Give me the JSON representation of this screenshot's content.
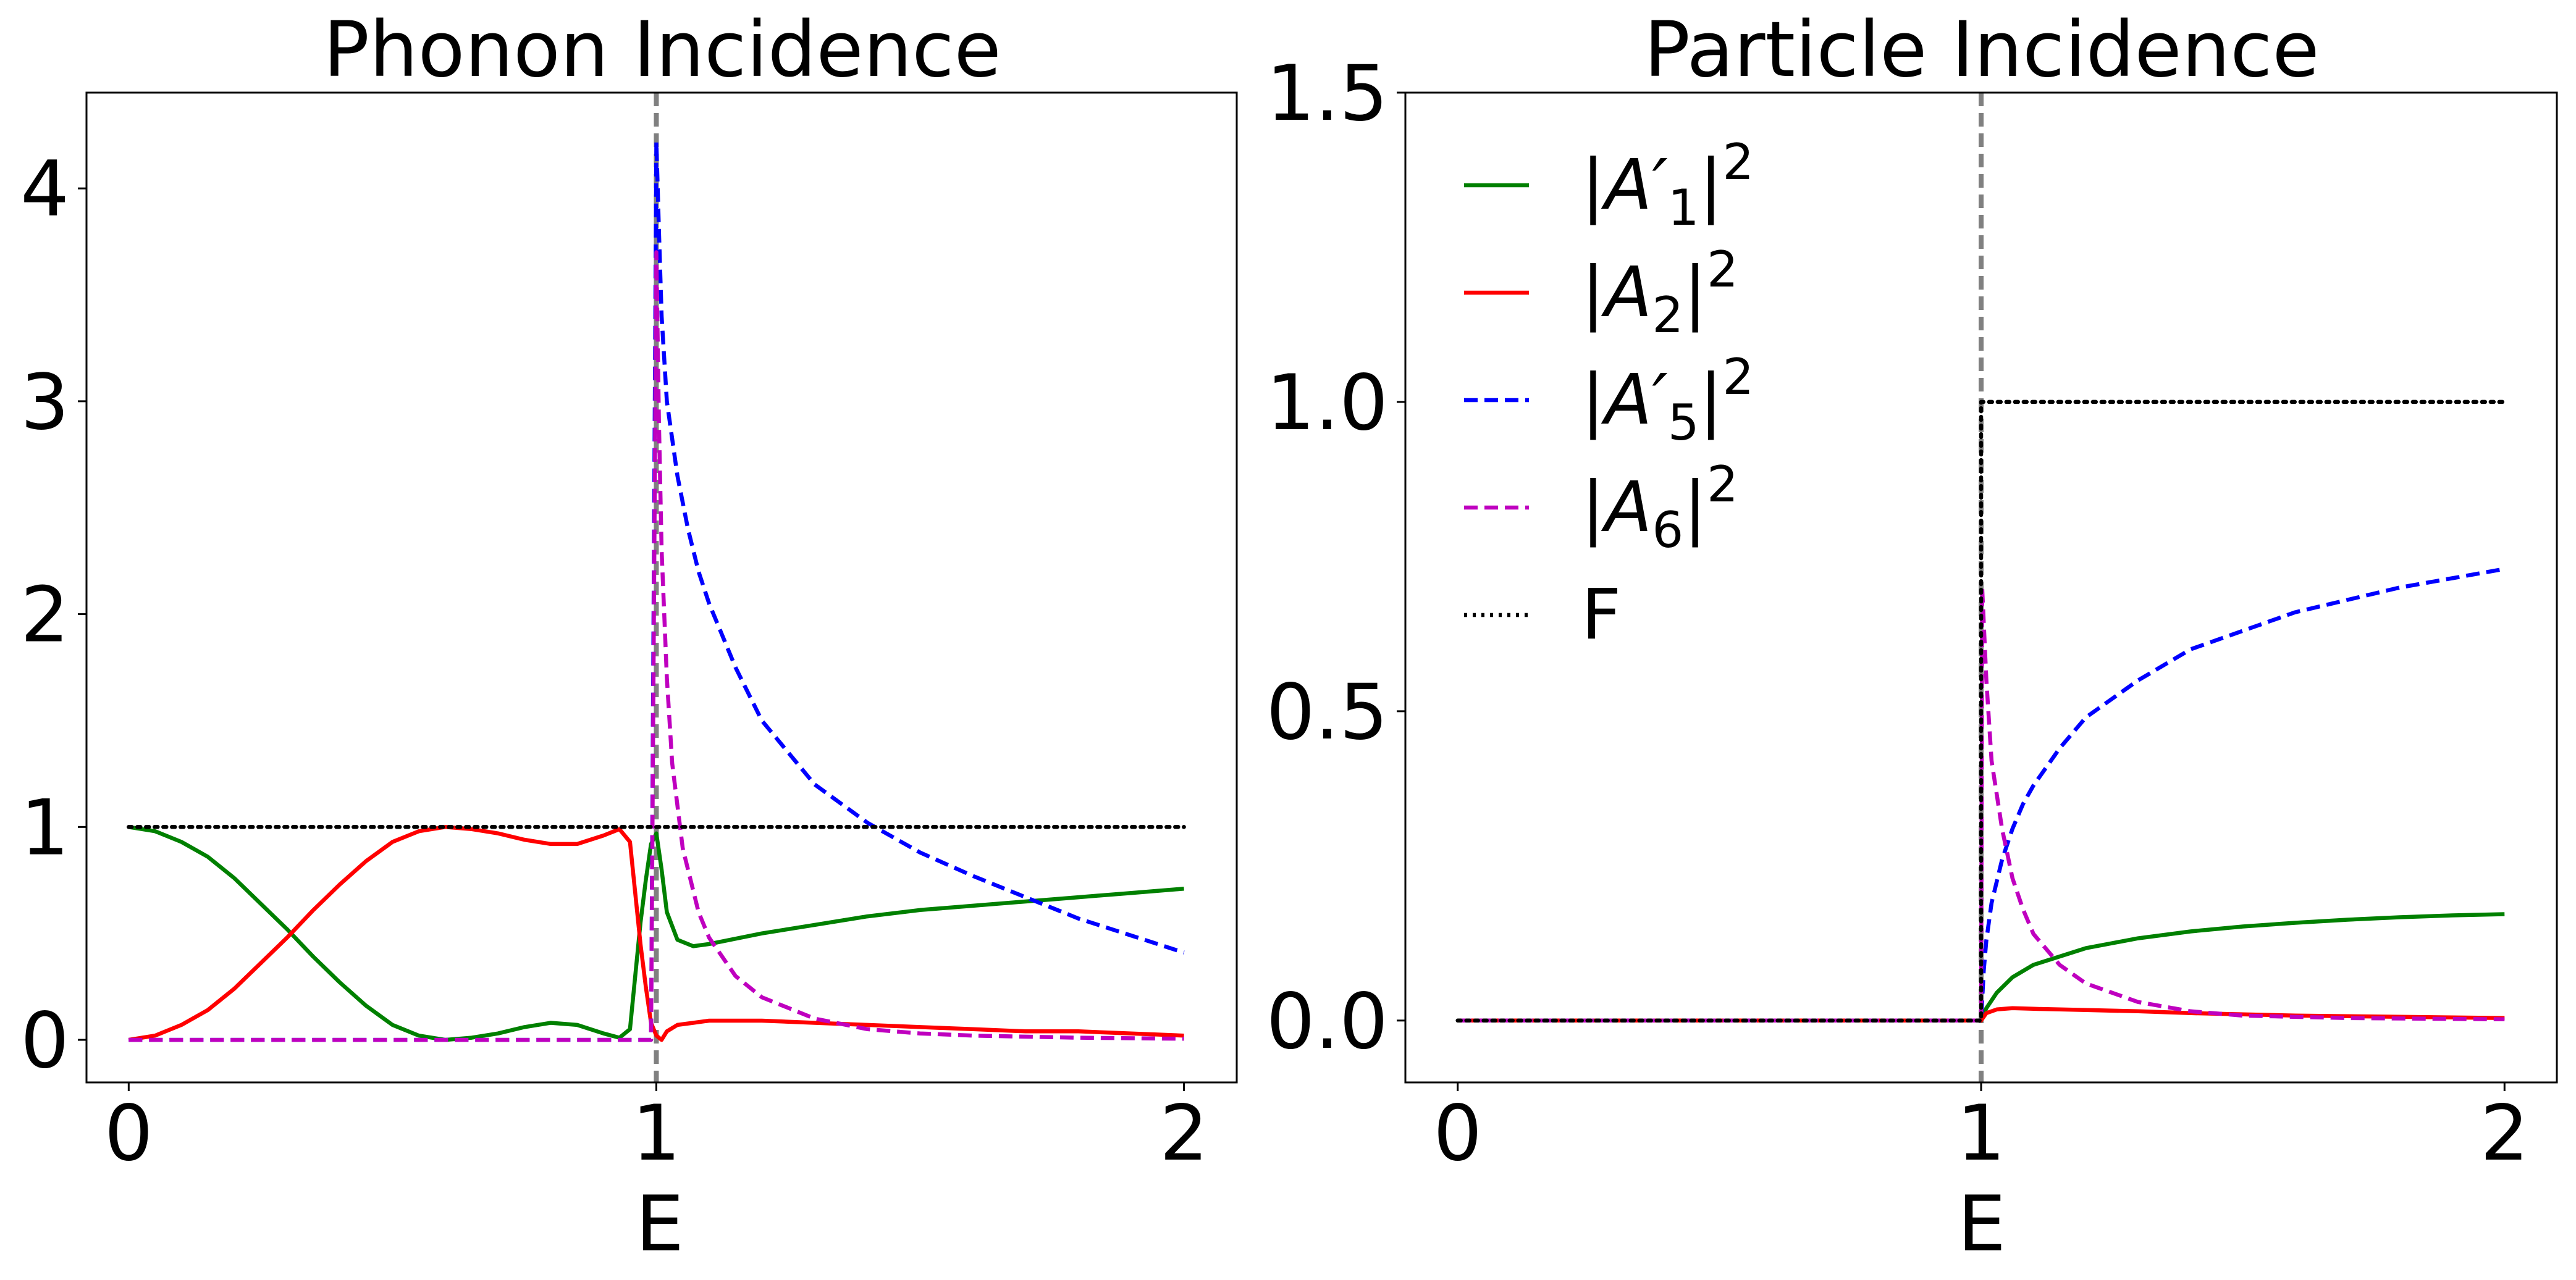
{
  "chart_data": [
    {
      "type": "line",
      "title": "Phonon Incidence",
      "xlabel": "E",
      "ylabel": "",
      "xlim": [
        -0.08,
        2.1
      ],
      "ylim": [
        -0.2,
        4.45
      ],
      "xticks": [
        0,
        1,
        2
      ],
      "xtick_labels": [
        "0",
        "1",
        "2"
      ],
      "yticks": [
        0,
        1,
        2,
        3,
        4
      ],
      "ytick_labels": [
        "0",
        "1",
        "2",
        "3",
        "4"
      ],
      "vline": {
        "x": 1.0,
        "color": "#808080",
        "style": "dashed"
      },
      "legend": null,
      "series": [
        {
          "name": "|A'1|^2",
          "color": "#008000",
          "style": "solid",
          "points": [
            [
              0,
              1.0
            ],
            [
              0.05,
              0.98
            ],
            [
              0.1,
              0.93
            ],
            [
              0.15,
              0.86
            ],
            [
              0.2,
              0.76
            ],
            [
              0.25,
              0.64
            ],
            [
              0.3,
              0.52
            ],
            [
              0.35,
              0.39
            ],
            [
              0.4,
              0.27
            ],
            [
              0.45,
              0.16
            ],
            [
              0.5,
              0.07
            ],
            [
              0.55,
              0.02
            ],
            [
              0.6,
              0.0
            ],
            [
              0.65,
              0.01
            ],
            [
              0.7,
              0.03
            ],
            [
              0.75,
              0.06
            ],
            [
              0.8,
              0.08
            ],
            [
              0.85,
              0.07
            ],
            [
              0.9,
              0.03
            ],
            [
              0.93,
              0.01
            ],
            [
              0.95,
              0.05
            ],
            [
              0.97,
              0.55
            ],
            [
              0.98,
              0.75
            ],
            [
              0.99,
              0.92
            ],
            [
              1.0,
              0.97
            ],
            [
              1.01,
              0.8
            ],
            [
              1.02,
              0.6
            ],
            [
              1.04,
              0.47
            ],
            [
              1.07,
              0.44
            ],
            [
              1.1,
              0.45
            ],
            [
              1.2,
              0.5
            ],
            [
              1.3,
              0.54
            ],
            [
              1.4,
              0.58
            ],
            [
              1.5,
              0.61
            ],
            [
              1.6,
              0.63
            ],
            [
              1.7,
              0.65
            ],
            [
              1.8,
              0.67
            ],
            [
              1.9,
              0.69
            ],
            [
              2.0,
              0.71
            ]
          ]
        },
        {
          "name": "|A2|^2",
          "color": "#ff0000",
          "style": "solid",
          "points": [
            [
              0,
              0.0
            ],
            [
              0.05,
              0.02
            ],
            [
              0.1,
              0.07
            ],
            [
              0.15,
              0.14
            ],
            [
              0.2,
              0.24
            ],
            [
              0.25,
              0.36
            ],
            [
              0.3,
              0.48
            ],
            [
              0.35,
              0.61
            ],
            [
              0.4,
              0.73
            ],
            [
              0.45,
              0.84
            ],
            [
              0.5,
              0.93
            ],
            [
              0.55,
              0.98
            ],
            [
              0.6,
              1.0
            ],
            [
              0.65,
              0.99
            ],
            [
              0.7,
              0.97
            ],
            [
              0.75,
              0.94
            ],
            [
              0.8,
              0.92
            ],
            [
              0.85,
              0.92
            ],
            [
              0.9,
              0.96
            ],
            [
              0.93,
              0.99
            ],
            [
              0.95,
              0.93
            ],
            [
              0.97,
              0.45
            ],
            [
              0.98,
              0.25
            ],
            [
              0.99,
              0.08
            ],
            [
              1.0,
              0.02
            ],
            [
              1.01,
              0.0
            ],
            [
              1.02,
              0.04
            ],
            [
              1.04,
              0.07
            ],
            [
              1.07,
              0.08
            ],
            [
              1.1,
              0.09
            ],
            [
              1.2,
              0.09
            ],
            [
              1.3,
              0.08
            ],
            [
              1.4,
              0.07
            ],
            [
              1.5,
              0.06
            ],
            [
              1.6,
              0.05
            ],
            [
              1.7,
              0.04
            ],
            [
              1.8,
              0.04
            ],
            [
              1.9,
              0.03
            ],
            [
              2.0,
              0.02
            ]
          ]
        },
        {
          "name": "|A'5|^2",
          "color": "#0000ff",
          "style": "dashed",
          "points": [
            [
              0,
              0.0
            ],
            [
              0.99,
              0.0
            ],
            [
              1.0,
              4.22
            ],
            [
              1.005,
              3.8
            ],
            [
              1.01,
              3.4
            ],
            [
              1.02,
              3.0
            ],
            [
              1.04,
              2.65
            ],
            [
              1.06,
              2.4
            ],
            [
              1.08,
              2.2
            ],
            [
              1.1,
              2.05
            ],
            [
              1.15,
              1.75
            ],
            [
              1.2,
              1.5
            ],
            [
              1.3,
              1.2
            ],
            [
              1.4,
              1.02
            ],
            [
              1.5,
              0.88
            ],
            [
              1.6,
              0.77
            ],
            [
              1.7,
              0.67
            ],
            [
              1.8,
              0.57
            ],
            [
              1.9,
              0.49
            ],
            [
              2.0,
              0.41
            ]
          ]
        },
        {
          "name": "|A6|^2",
          "color": "#bf00bf",
          "style": "dashed",
          "points": [
            [
              0,
              0.0
            ],
            [
              0.99,
              0.0
            ],
            [
              1.0,
              3.7
            ],
            [
              1.005,
              2.9
            ],
            [
              1.01,
              2.3
            ],
            [
              1.02,
              1.7
            ],
            [
              1.03,
              1.3
            ],
            [
              1.05,
              0.9
            ],
            [
              1.08,
              0.6
            ],
            [
              1.1,
              0.48
            ],
            [
              1.15,
              0.3
            ],
            [
              1.2,
              0.2
            ],
            [
              1.3,
              0.1
            ],
            [
              1.4,
              0.05
            ],
            [
              1.5,
              0.03
            ],
            [
              1.6,
              0.02
            ],
            [
              1.8,
              0.01
            ],
            [
              2.0,
              0.005
            ]
          ]
        },
        {
          "name": "F",
          "color": "#000000",
          "style": "dotted",
          "points": [
            [
              0,
              1.0
            ],
            [
              2.0,
              1.0
            ]
          ]
        }
      ]
    },
    {
      "type": "line",
      "title": "Particle Incidence",
      "xlabel": "E",
      "ylabel": "",
      "xlim": [
        -0.1,
        2.1
      ],
      "ylim": [
        -0.1,
        1.5
      ],
      "xticks": [
        0,
        1,
        2
      ],
      "xtick_labels": [
        "0",
        "1",
        "2"
      ],
      "yticks": [
        0.0,
        0.5,
        1.0,
        1.5
      ],
      "ytick_labels": [
        "0.0",
        "0.5",
        "1.0",
        "1.5"
      ],
      "vline": {
        "x": 1.0,
        "color": "#808080",
        "style": "dashed"
      },
      "legend": {
        "position": "upper-left"
      },
      "series": [
        {
          "name": "|A'1|^2",
          "legend_base": "|A′",
          "legend_sub": "1",
          "legend_tail": "|",
          "legend_sup": "2",
          "color": "#008000",
          "style": "solid",
          "points": [
            [
              0,
              0.0
            ],
            [
              1.0,
              0.0
            ],
            [
              1.01,
              0.02
            ],
            [
              1.03,
              0.045
            ],
            [
              1.06,
              0.07
            ],
            [
              1.1,
              0.09
            ],
            [
              1.2,
              0.117
            ],
            [
              1.3,
              0.133
            ],
            [
              1.4,
              0.144
            ],
            [
              1.5,
              0.152
            ],
            [
              1.6,
              0.158
            ],
            [
              1.7,
              0.163
            ],
            [
              1.8,
              0.167
            ],
            [
              1.9,
              0.17
            ],
            [
              2.0,
              0.172
            ]
          ]
        },
        {
          "name": "|A2|^2",
          "legend_base": "|A",
          "legend_sub": "2",
          "legend_tail": "|",
          "legend_sup": "2",
          "color": "#ff0000",
          "style": "solid",
          "points": [
            [
              0,
              0.0
            ],
            [
              1.0,
              0.0
            ],
            [
              1.01,
              0.012
            ],
            [
              1.03,
              0.018
            ],
            [
              1.06,
              0.02
            ],
            [
              1.1,
              0.019
            ],
            [
              1.2,
              0.017
            ],
            [
              1.3,
              0.015
            ],
            [
              1.4,
              0.012
            ],
            [
              1.5,
              0.01
            ],
            [
              1.6,
              0.008
            ],
            [
              1.7,
              0.007
            ],
            [
              1.8,
              0.006
            ],
            [
              1.9,
              0.005
            ],
            [
              2.0,
              0.004
            ]
          ]
        },
        {
          "name": "|A'5|^2",
          "legend_base": "|A′",
          "legend_sub": "5",
          "legend_tail": "|",
          "legend_sup": "2",
          "color": "#0000ff",
          "style": "dashed",
          "points": [
            [
              0,
              0.0
            ],
            [
              1.0,
              0.0
            ],
            [
              1.005,
              0.08
            ],
            [
              1.01,
              0.13
            ],
            [
              1.02,
              0.19
            ],
            [
              1.04,
              0.26
            ],
            [
              1.06,
              0.31
            ],
            [
              1.08,
              0.35
            ],
            [
              1.1,
              0.38
            ],
            [
              1.15,
              0.44
            ],
            [
              1.2,
              0.49
            ],
            [
              1.3,
              0.55
            ],
            [
              1.4,
              0.6
            ],
            [
              1.5,
              0.63
            ],
            [
              1.6,
              0.66
            ],
            [
              1.7,
              0.68
            ],
            [
              1.8,
              0.7
            ],
            [
              1.9,
              0.715
            ],
            [
              2.0,
              0.73
            ]
          ]
        },
        {
          "name": "|A6|^2",
          "legend_base": "|A",
          "legend_sub": "6",
          "legend_tail": "|",
          "legend_sup": "2",
          "color": "#bf00bf",
          "style": "dashed",
          "points": [
            [
              0,
              0.0
            ],
            [
              1.0,
              0.0
            ],
            [
              1.002,
              0.7
            ],
            [
              1.01,
              0.55
            ],
            [
              1.02,
              0.42
            ],
            [
              1.04,
              0.31
            ],
            [
              1.06,
              0.23
            ],
            [
              1.08,
              0.18
            ],
            [
              1.1,
              0.14
            ],
            [
              1.15,
              0.09
            ],
            [
              1.2,
              0.06
            ],
            [
              1.3,
              0.03
            ],
            [
              1.4,
              0.015
            ],
            [
              1.5,
              0.008
            ],
            [
              1.7,
              0.004
            ],
            [
              2.0,
              0.002
            ]
          ]
        },
        {
          "name": "F",
          "legend_base": "F",
          "legend_sub": "",
          "legend_tail": "",
          "legend_sup": "",
          "color": "#000000",
          "style": "dotted",
          "points": [
            [
              0,
              0.0
            ],
            [
              1.0,
              0.0
            ],
            [
              1.0,
              1.0
            ],
            [
              2.0,
              1.0
            ]
          ]
        }
      ]
    }
  ]
}
